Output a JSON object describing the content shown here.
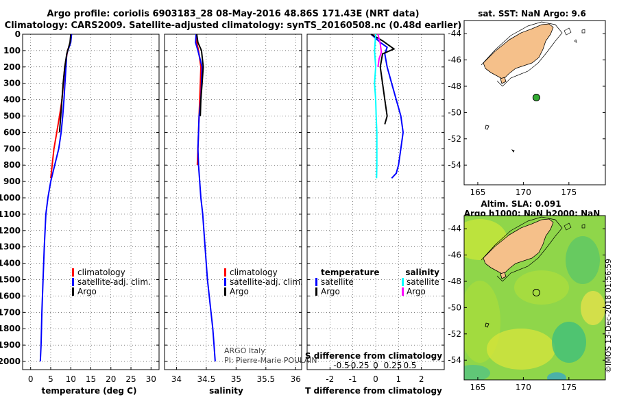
{
  "title": {
    "line1": "Argo profile: coriolis 6903183_28 08-May-2016 48.86S 171.43E (NRT data)",
    "line2": "Climatology: CARS2009. Satellite-adjusted climatology: synTS_20160508.nc (0.48d earlier)"
  },
  "colors": {
    "climatology": "#ff0000",
    "satellite": "#0000ff",
    "argo": "#000000",
    "sat_salinity": "#00ffff",
    "argo_salinity": "#ff00ff",
    "land": "#f5c08a",
    "argo_marker": "#33aa33"
  },
  "chart_data": [
    {
      "type": "line",
      "id": "temperature",
      "xlabel": "temperature (deg C)",
      "ylabel": "",
      "xlim": [
        -2,
        32
      ],
      "ylim": [
        0,
        2050
      ],
      "xticks": [
        0,
        5,
        10,
        15,
        20,
        25,
        30
      ],
      "yticks": [
        0,
        100,
        200,
        300,
        400,
        500,
        600,
        700,
        800,
        900,
        1000,
        1100,
        1200,
        1300,
        1400,
        1500,
        1600,
        1700,
        1800,
        1900,
        2000
      ],
      "legend": [
        "climatology",
        "satellite-adj. clim.",
        "Argo"
      ],
      "legend_placement": "lower-right",
      "series": [
        {
          "name": "climatology",
          "color": "#ff0000",
          "x": [
            10.0,
            9.9,
            9.2,
            8.5,
            7.8,
            7.2,
            6.5,
            5.8,
            5.0
          ],
          "y": [
            0,
            50,
            100,
            200,
            400,
            500,
            600,
            700,
            880
          ]
        },
        {
          "name": "satellite-adj. clim.",
          "color": "#0000ff",
          "x": [
            10.2,
            10.0,
            9.0,
            8.8,
            8.3,
            8.0,
            7.6,
            7.0,
            6.0,
            5.0,
            4.3,
            3.8,
            3.4,
            3.1,
            2.8,
            2.6,
            2.4
          ],
          "y": [
            0,
            50,
            120,
            200,
            400,
            500,
            600,
            700,
            800,
            900,
            1000,
            1100,
            1300,
            1500,
            1700,
            1900,
            2000
          ]
        },
        {
          "name": "Argo",
          "color": "#000000",
          "x": [
            10.0,
            9.8,
            9.0,
            8.5,
            8.1,
            7.8,
            7.5,
            7.2
          ],
          "y": [
            0,
            50,
            120,
            200,
            300,
            400,
            500,
            600
          ]
        }
      ]
    },
    {
      "type": "line",
      "id": "salinity",
      "xlabel": "salinity",
      "xlim": [
        33.8,
        36.1
      ],
      "ylim": [
        0,
        2050
      ],
      "xticks": [
        34,
        34.5,
        35,
        35.5,
        36
      ],
      "legend": [
        "climatology",
        "satellite-adj. clim.",
        "Argo"
      ],
      "legend_placement": "lower-right",
      "annotation": [
        "ARGO Italy",
        "PI: Pierre-Marie POULAIN"
      ],
      "series": [
        {
          "name": "climatology",
          "color": "#ff0000",
          "x": [
            34.33,
            34.34,
            34.37,
            34.41,
            34.4,
            34.39,
            34.38,
            34.37,
            34.36,
            34.35
          ],
          "y": [
            0,
            50,
            100,
            200,
            300,
            400,
            500,
            600,
            700,
            800
          ]
        },
        {
          "name": "satellite-adj. clim.",
          "color": "#0000ff",
          "x": [
            34.33,
            34.32,
            34.36,
            34.43,
            34.42,
            34.41,
            34.38,
            34.37,
            34.36,
            34.37,
            34.41,
            34.44,
            34.48,
            34.52,
            34.55,
            34.58,
            34.61,
            34.63,
            34.65
          ],
          "y": [
            0,
            50,
            100,
            200,
            300,
            400,
            500,
            600,
            700,
            800,
            1000,
            1100,
            1300,
            1500,
            1600,
            1700,
            1800,
            1900,
            2000
          ]
        },
        {
          "name": "Argo",
          "color": "#000000",
          "x": [
            34.34,
            34.36,
            34.42,
            34.45,
            34.43,
            34.41,
            34.4
          ],
          "y": [
            0,
            50,
            100,
            200,
            300,
            400,
            500
          ]
        }
      ]
    },
    {
      "type": "line",
      "id": "difference",
      "xlabel": "T difference from climatology",
      "xlabel_top": "S difference from climatology",
      "xlim": [
        -3,
        3
      ],
      "ylim": [
        0,
        2050
      ],
      "xticks": [
        -2,
        -1,
        0,
        1,
        2
      ],
      "xtick_labels_top": [
        {
          "value": -1.5,
          "label": "-0.5"
        },
        {
          "value": -0.75,
          "label": "-0.25"
        },
        {
          "value": 0,
          "label": "0"
        },
        {
          "value": 0.75,
          "label": "0.25"
        },
        {
          "value": 1.5,
          "label": "0.5"
        }
      ],
      "legend": [
        {
          "header": "temperature",
          "entries": [
            "satellite",
            "Argo"
          ]
        },
        {
          "header": "salinity",
          "entries": [
            "satellite",
            "Argo"
          ]
        }
      ],
      "legend_placement": "lower-center",
      "series": [
        {
          "name": "T satellite",
          "color": "#0000ff",
          "x": [
            -0.2,
            0.2,
            0.5,
            0.4,
            0.5,
            0.7,
            0.9,
            1.1,
            1.2,
            1.1,
            1.0,
            0.9,
            0.7
          ],
          "y": [
            0,
            50,
            80,
            120,
            200,
            300,
            400,
            500,
            600,
            700,
            800,
            850,
            880
          ]
        },
        {
          "name": "T Argo",
          "color": "#000000",
          "x": [
            -0.2,
            0.3,
            0.8,
            0.3,
            0.2,
            0.3,
            0.4,
            0.5,
            0.4
          ],
          "y": [
            0,
            40,
            90,
            120,
            200,
            300,
            400,
            500,
            550
          ]
        },
        {
          "name": "S satellite",
          "color": "#00ffff",
          "x": [
            0.0,
            -0.05,
            0.0,
            -0.05,
            0.0,
            0.02,
            0.05,
            0.05,
            0.05,
            0.04
          ],
          "y": [
            0,
            100,
            200,
            300,
            400,
            500,
            600,
            700,
            800,
            880
          ]
        },
        {
          "name": "S Argo",
          "color": "#ff00ff",
          "x": [
            0.1,
            0.2,
            0.25,
            0.15,
            0.1
          ],
          "y": [
            0,
            60,
            110,
            150,
            200
          ]
        }
      ]
    },
    {
      "type": "scatter",
      "id": "sst-map",
      "title": "sat. SST: NaN Argo: 9.6",
      "xlim": [
        163.5,
        179
      ],
      "ylim": [
        -55.5,
        -43
      ],
      "xticks": [
        165,
        170,
        175
      ],
      "yticks": [
        -44,
        -46,
        -48,
        -50,
        -52,
        -54
      ],
      "points": [
        {
          "lon": 171.43,
          "lat": -48.86,
          "label": "Argo"
        }
      ]
    },
    {
      "type": "heatmap",
      "id": "sla-map",
      "title_line1": "Altim. SLA: 0.091",
      "title_line2": "Argo h1000: NaN h2000: NaN",
      "xlim": [
        163.5,
        179
      ],
      "ylim": [
        -55.5,
        -43
      ],
      "xticks": [
        165,
        170,
        175
      ],
      "yticks": [
        -44,
        -46,
        -48,
        -50,
        -52,
        -54
      ],
      "points": [
        {
          "lon": 171.43,
          "lat": -48.86,
          "label": "Argo"
        }
      ],
      "side_label": "©IMOS 13-Dec-2018 01:56:59"
    }
  ]
}
